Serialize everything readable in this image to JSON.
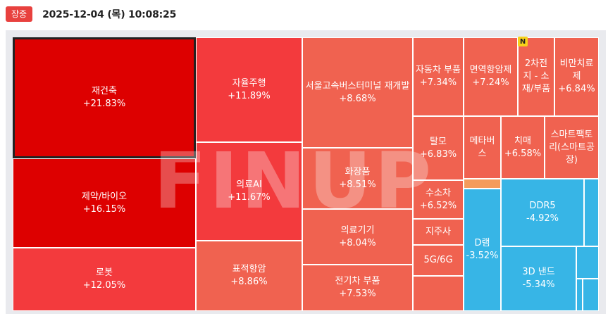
{
  "header": {
    "badge": "장중",
    "timestamp": "2025-12-04 (목) 10:08:25"
  },
  "watermark": "FINUP",
  "new_badge": "N",
  "colors": {
    "strong_up": "#dd0000",
    "up": "#f33a3d",
    "mild_up": "#f06250",
    "down": "#37b5e6",
    "badge": "#e8413e"
  },
  "tiles": {
    "t01": {
      "name": "재건축",
      "change": "+21.83%"
    },
    "t02": {
      "name": "제약/바이오",
      "change": "+16.15%"
    },
    "t03": {
      "name": "로봇",
      "change": "+12.05%"
    },
    "t04": {
      "name": "자율주행",
      "change": "+11.89%"
    },
    "t05": {
      "name": "의료AI",
      "change": "+11.67%"
    },
    "t06": {
      "name": "표적항암",
      "change": "+8.86%"
    },
    "t07": {
      "name": "서울고속버스터미널 재개발",
      "change": "+8.68%"
    },
    "t08": {
      "name": "화장품",
      "change": "+8.51%"
    },
    "t09": {
      "name": "의료기기",
      "change": "+8.04%"
    },
    "t10": {
      "name": "전기차 부품",
      "change": "+7.53%"
    },
    "t11": {
      "name": "자동차 부품",
      "change": "+7.34%"
    },
    "t12": {
      "name": "면역항암제",
      "change": "+7.24%"
    },
    "t13": {
      "name": "2차전지 - 소재/부품",
      "change": ""
    },
    "t14": {
      "name": "비만치료제",
      "change": "+6.84%"
    },
    "t15": {
      "name": "탈모",
      "change": "+6.83%"
    },
    "t16": {
      "name": "메타버스",
      "change": ""
    },
    "t17": {
      "name": "치매",
      "change": "+6.58%"
    },
    "t18": {
      "name": "스마트팩토리(스마트공장)",
      "change": ""
    },
    "t19": {
      "name": "수소차",
      "change": "+6.52%"
    },
    "t20": {
      "name": "지주사",
      "change": ""
    },
    "t21": {
      "name": "5G/6G",
      "change": ""
    },
    "t22": {
      "name": "D램",
      "change": "-3.52%"
    },
    "t23": {
      "name": "DDR5",
      "change": "-4.92%"
    },
    "t24": {
      "name": "3D 낸드",
      "change": "-5.34%"
    }
  }
}
